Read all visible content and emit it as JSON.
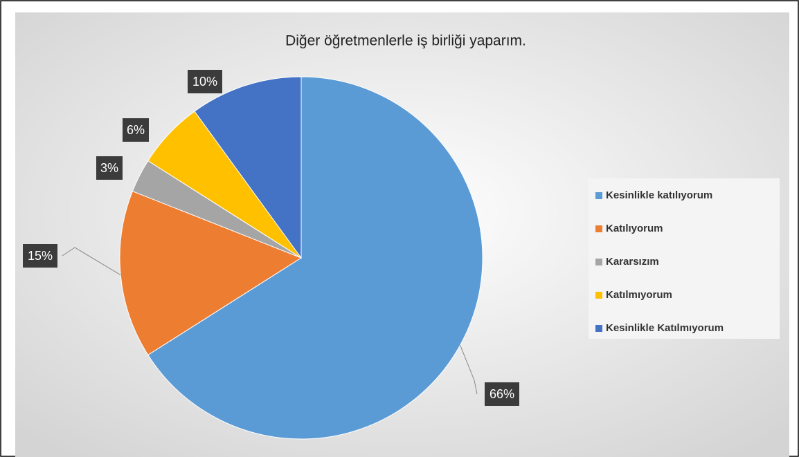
{
  "chart_data": {
    "type": "pie",
    "title": "Diğer öğretmenlerle iş birliği yaparım.",
    "categories": [
      "Kesinlikle katılıyorum",
      "Katılıyorum",
      "Kararsızım",
      "Katılmıyorum",
      "Kesinlikle Katılmıyorum"
    ],
    "values": [
      66,
      15,
      3,
      6,
      10
    ],
    "value_labels": [
      "66%",
      "15%",
      "3%",
      "6%",
      "10%"
    ],
    "colors": [
      "#5b9bd5",
      "#ed7d31",
      "#a5a5a5",
      "#ffc000",
      "#4472c4"
    ],
    "legend": "right"
  }
}
